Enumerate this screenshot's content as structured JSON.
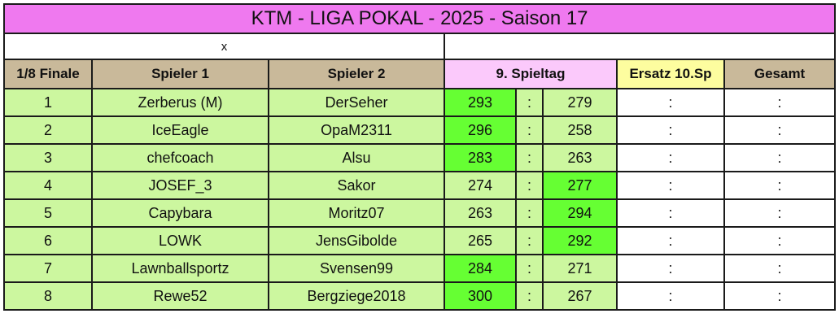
{
  "title": "KTM - LIGA  POKAL  - 2025 - Saison 17",
  "subheader": {
    "left": "x",
    "right": ""
  },
  "headers": {
    "round": "1/8 Finale",
    "player1": "Spieler 1",
    "player2": "Spieler 2",
    "matchday": "9. Spieltag",
    "replacement": "Ersatz 10.Sp",
    "total": "Gesamt"
  },
  "colors": {
    "win": "#66ff33",
    "row_bg": "#ccf79f",
    "header_bg": "#c9b99a",
    "title_bg": "#ef79ef"
  },
  "rows": [
    {
      "nr": "1",
      "p1": "Zerberus (M)",
      "p2": "DerSeher",
      "s1": "293",
      "sep": ":",
      "s2": "279",
      "winner": 1,
      "ersatz": ":",
      "gesamt": ":"
    },
    {
      "nr": "2",
      "p1": "IceEagle",
      "p2": "OpaM2311",
      "s1": "296",
      "sep": ":",
      "s2": "258",
      "winner": 1,
      "ersatz": ":",
      "gesamt": ":"
    },
    {
      "nr": "3",
      "p1": "chefcoach",
      "p2": "Alsu",
      "s1": "283",
      "sep": ":",
      "s2": "263",
      "winner": 1,
      "ersatz": ":",
      "gesamt": ":"
    },
    {
      "nr": "4",
      "p1": "JOSEF_3",
      "p2": "Sakor",
      "s1": "274",
      "sep": ":",
      "s2": "277",
      "winner": 2,
      "ersatz": ":",
      "gesamt": ":"
    },
    {
      "nr": "5",
      "p1": "Capybara",
      "p2": "Moritz07",
      "s1": "263",
      "sep": ":",
      "s2": "294",
      "winner": 2,
      "ersatz": ":",
      "gesamt": ":"
    },
    {
      "nr": "6",
      "p1": "LOWK",
      "p2": "JensGibolde",
      "s1": "265",
      "sep": ":",
      "s2": "292",
      "winner": 2,
      "ersatz": ":",
      "gesamt": ":"
    },
    {
      "nr": "7",
      "p1": "Lawnballsportz",
      "p2": "Svensen99",
      "s1": "284",
      "sep": ":",
      "s2": "271",
      "winner": 1,
      "ersatz": ":",
      "gesamt": ":"
    },
    {
      "nr": "8",
      "p1": "Rewe52",
      "p2": "Bergziege2018",
      "s1": "300",
      "sep": ":",
      "s2": "267",
      "winner": 1,
      "ersatz": ":",
      "gesamt": ":"
    }
  ]
}
